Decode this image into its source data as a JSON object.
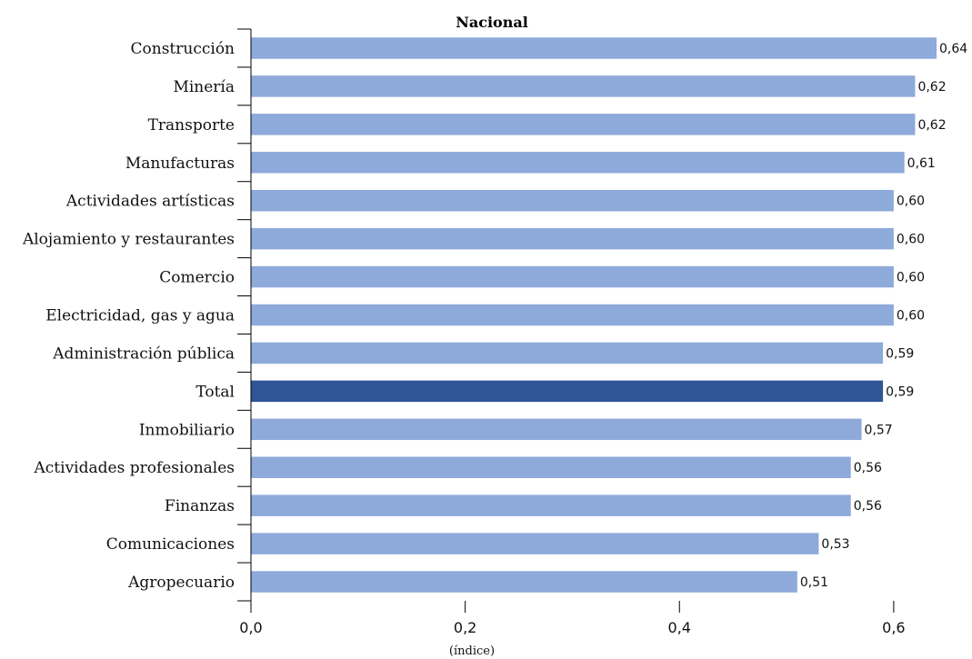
{
  "chart_data": {
    "type": "bar",
    "orientation": "horizontal",
    "title": "Nacional",
    "xlabel": "(índice)",
    "ylabel": "",
    "xlim": [
      0,
      0.64
    ],
    "x_ticks": [
      {
        "value": 0,
        "label": "0,0"
      },
      {
        "value": 0.2,
        "label": "0,2"
      },
      {
        "value": 0.4,
        "label": "0,4"
      },
      {
        "value": 0.6,
        "label": "0,6"
      }
    ],
    "grid": false,
    "legend": "none",
    "colors": {
      "bar": "#8eaadb",
      "highlight": "#2f5597"
    },
    "categories": [
      "Construcción",
      "Minería",
      "Transporte",
      "Manufacturas",
      "Actividades artísticas",
      "Alojamiento y restaurantes",
      "Comercio",
      "Electricidad, gas y agua",
      "Administración pública",
      "Total",
      "Inmobiliario",
      "Actividades profesionales",
      "Finanzas",
      "Comunicaciones",
      "Agropecuario"
    ],
    "values": [
      0.64,
      0.62,
      0.62,
      0.61,
      0.6,
      0.6,
      0.6,
      0.6,
      0.59,
      0.59,
      0.57,
      0.56,
      0.56,
      0.53,
      0.51
    ],
    "value_labels": [
      "0,64",
      "0,62",
      "0,62",
      "0,61",
      "0,60",
      "0,60",
      "0,60",
      "0,60",
      "0,59",
      "0,59",
      "0,57",
      "0,56",
      "0,56",
      "0,53",
      "0,51"
    ],
    "highlight_category": "Total"
  }
}
